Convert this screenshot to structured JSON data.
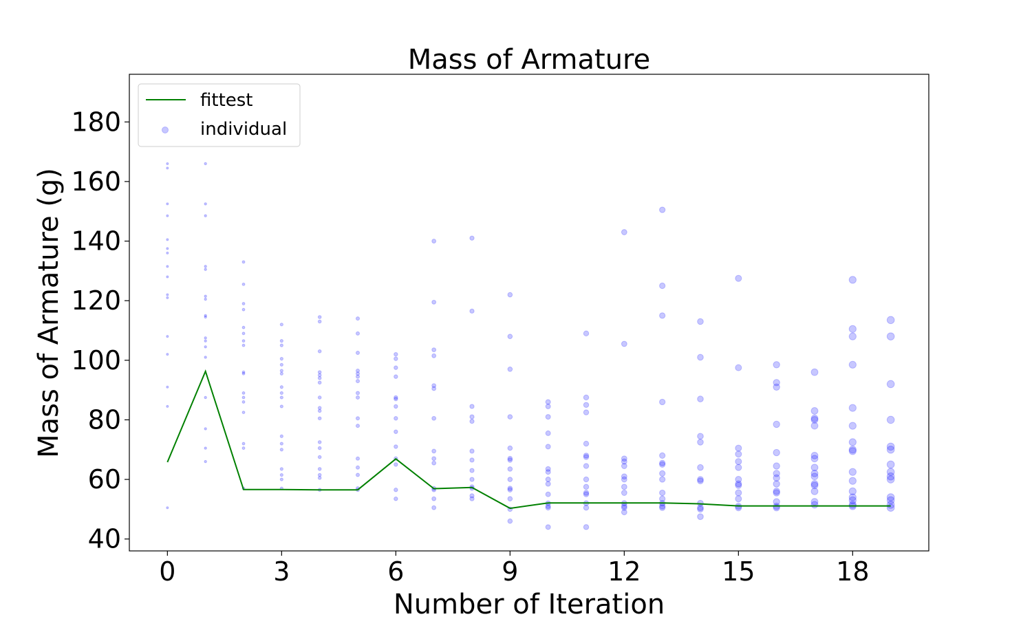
{
  "chart_data": {
    "type": "scatter",
    "title": "Mass of Armature",
    "xlabel": "Number of Iteration",
    "ylabel": "Mass of Armature (g)",
    "xlim": [
      -1,
      20
    ],
    "ylim": [
      36,
      196
    ],
    "xticks": [
      0,
      3,
      6,
      9,
      12,
      15,
      18
    ],
    "yticks": [
      40,
      60,
      80,
      100,
      120,
      140,
      160,
      180
    ],
    "grid": false,
    "legend_position": "top-left",
    "series": [
      {
        "name": "fittest",
        "kind": "line",
        "color": "#008000",
        "x": [
          0,
          1,
          2,
          3,
          4,
          5,
          6,
          7,
          8,
          9,
          10,
          11,
          12,
          13,
          14,
          15,
          16,
          17,
          18,
          19
        ],
        "y": [
          65.8,
          96.3,
          56.6,
          56.6,
          56.5,
          56.5,
          66.9,
          56.9,
          57.3,
          50.3,
          52.1,
          52.1,
          52.1,
          52.1,
          51.8,
          51.1,
          51.1,
          51.1,
          51.1,
          51.1
        ]
      },
      {
        "name": "individual",
        "kind": "scatter",
        "color": "#0000ff",
        "points": [
          {
            "x": 0,
            "ys": [
              166,
              164.5,
              152.5,
              148.5,
              140.5,
              137.5,
              136,
              131.5,
              128,
              122,
              121,
              108,
              102,
              91,
              84.5,
              50.5
            ]
          },
          {
            "x": 1,
            "ys": [
              166,
              152.5,
              148.5,
              131.5,
              130.5,
              121.5,
              120.5,
              115,
              114.5,
              107.5,
              106.5,
              104.5,
              101,
              87.5,
              77,
              70.5,
              66
            ]
          },
          {
            "x": 2,
            "ys": [
              133,
              125.5,
              119,
              117,
              111,
              109,
              106.5,
              105,
              96,
              95.5,
              89,
              87.5,
              86,
              82.5,
              72,
              70.5,
              57
            ]
          },
          {
            "x": 3,
            "ys": [
              112,
              106.5,
              105,
              100.5,
              98.5,
              96.5,
              95.5,
              91,
              89,
              87.5,
              84.5,
              74.5,
              72,
              70,
              63.5,
              61.5,
              60,
              57
            ]
          },
          {
            "x": 4,
            "ys": [
              114.5,
              113,
              103,
              96,
              95,
              94,
              92.5,
              87.5,
              84,
              83,
              80.5,
              72.5,
              70.5,
              67.5,
              63.5,
              61.5,
              60.5,
              56.5
            ]
          },
          {
            "x": 5,
            "ys": [
              114,
              109,
              102.5,
              96.5,
              95.5,
              94.5,
              93,
              89,
              87.5,
              80.5,
              78,
              67,
              64,
              61.5,
              57,
              56.5
            ]
          },
          {
            "x": 6,
            "ys": [
              102,
              100.5,
              97.5,
              94.5,
              87.5,
              87,
              84.5,
              80.5,
              76,
              71,
              67,
              65,
              56.5,
              53.5
            ]
          },
          {
            "x": 7,
            "ys": [
              140,
              119.5,
              103.5,
              101.5,
              91.5,
              90.5,
              80.5,
              69.5,
              67,
              65.5,
              57,
              56.5,
              53.5,
              50.5
            ]
          },
          {
            "x": 8,
            "ys": [
              141,
              116.5,
              84.5,
              81,
              79.5,
              69.5,
              66.5,
              63,
              60,
              57.5,
              57,
              54.5,
              53.5
            ]
          },
          {
            "x": 9,
            "ys": [
              122,
              108,
              97,
              81,
              70.5,
              67,
              66.5,
              63.5,
              60,
              57,
              56.5,
              53.5,
              50,
              46
            ]
          },
          {
            "x": 10,
            "ys": [
              86,
              84.5,
              81,
              75.5,
              71,
              63.5,
              62.5,
              60,
              58.5,
              55,
              52,
              51,
              50.5,
              44
            ]
          },
          {
            "x": 11,
            "ys": [
              109,
              87.5,
              85,
              82.5,
              72,
              68,
              67.5,
              64.5,
              60,
              57.5,
              55.5,
              55,
              52,
              50.5,
              44
            ]
          },
          {
            "x": 12,
            "ys": [
              143,
              105.5,
              67,
              66,
              64.5,
              61,
              60,
              57.5,
              55.5,
              52,
              51,
              50.5,
              49
            ]
          },
          {
            "x": 13,
            "ys": [
              150.5,
              125,
              115,
              86,
              68,
              65.5,
              65,
              62,
              60,
              55.5,
              53.5,
              52,
              51,
              50.5
            ]
          },
          {
            "x": 14,
            "ys": [
              113,
              101,
              87,
              74.5,
              72.5,
              64,
              60,
              59.5,
              52,
              50.5,
              50,
              47.5
            ]
          },
          {
            "x": 15,
            "ys": [
              127.5,
              97.5,
              70.5,
              68.5,
              66,
              64,
              60,
              58.5,
              58,
              55.5,
              53.5,
              51,
              50.5
            ]
          },
          {
            "x": 16,
            "ys": [
              98.5,
              92.5,
              91,
              78.5,
              69,
              64.5,
              62,
              60.5,
              58.5,
              56,
              55.5,
              52.5,
              51,
              50.5
            ]
          },
          {
            "x": 17,
            "ys": [
              96,
              83,
              80.5,
              80,
              78,
              68,
              67,
              64,
              62,
              61,
              58.5,
              58,
              56,
              52.5,
              51.5
            ]
          },
          {
            "x": 18,
            "ys": [
              127,
              110.5,
              108,
              98.5,
              84,
              78,
              72.5,
              70,
              69.5,
              62.5,
              59.5,
              56,
              54,
              53,
              51.5,
              51
            ]
          },
          {
            "x": 19,
            "ys": [
              113.5,
              108,
              92,
              80,
              71,
              70,
              65,
              62.5,
              61,
              60,
              54,
              53,
              51.5,
              50.5
            ]
          }
        ]
      }
    ]
  }
}
